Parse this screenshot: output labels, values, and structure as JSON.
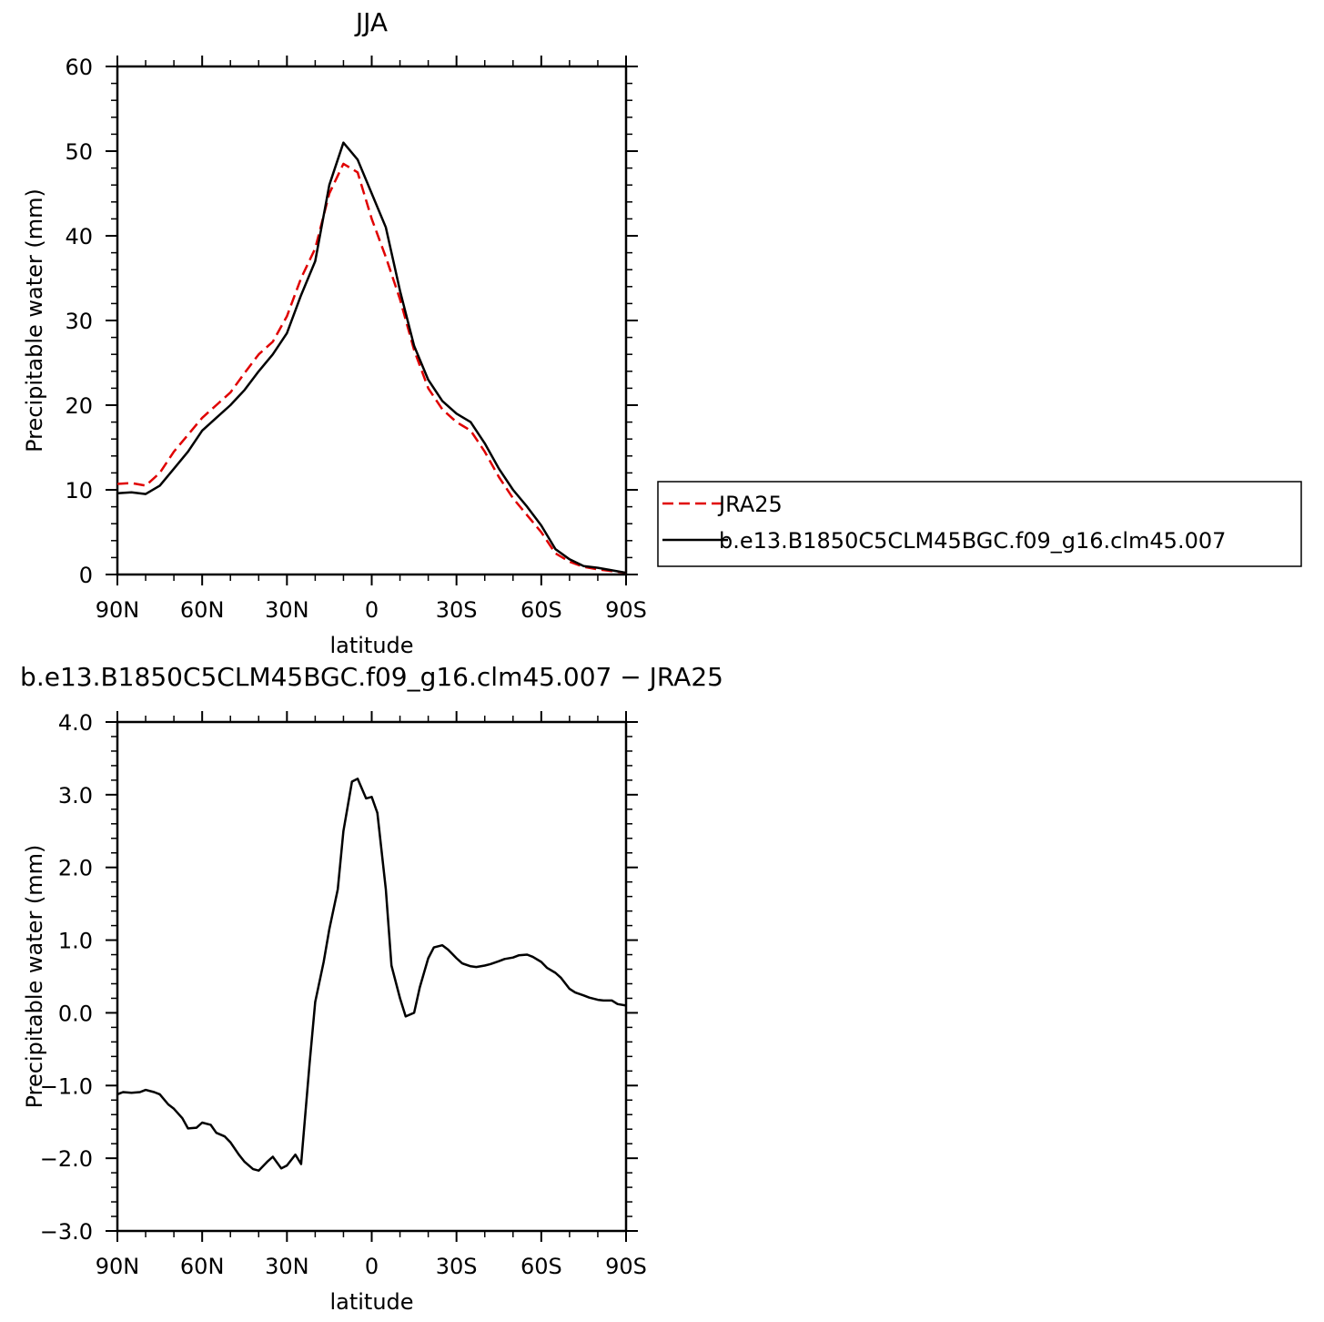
{
  "chart_data": [
    {
      "type": "line",
      "title": "JJA",
      "xlabel": "latitude",
      "ylabel": "Precipitable water (mm)",
      "xlim": [
        90,
        -90
      ],
      "ylim": [
        0,
        60
      ],
      "xticks": [
        {
          "value": 90,
          "label": "90N"
        },
        {
          "value": 60,
          "label": "60N"
        },
        {
          "value": 30,
          "label": "30N"
        },
        {
          "value": 0,
          "label": "0"
        },
        {
          "value": -30,
          "label": "30S"
        },
        {
          "value": -60,
          "label": "60S"
        },
        {
          "value": -90,
          "label": "90S"
        }
      ],
      "yticks": [
        {
          "value": 0,
          "label": "0"
        },
        {
          "value": 10,
          "label": "10"
        },
        {
          "value": 20,
          "label": "20"
        },
        {
          "value": 30,
          "label": "30"
        },
        {
          "value": 40,
          "label": "40"
        },
        {
          "value": 50,
          "label": "50"
        },
        {
          "value": 60,
          "label": "60"
        }
      ],
      "legend_position": "right",
      "series": [
        {
          "name": "JRA25",
          "color": "#e00000",
          "style": "dashed",
          "x": [
            90,
            85,
            80,
            75,
            70,
            65,
            60,
            55,
            50,
            45,
            40,
            35,
            30,
            25,
            20,
            15,
            10,
            5,
            0,
            -5,
            -10,
            -15,
            -20,
            -25,
            -30,
            -35,
            -40,
            -45,
            -50,
            -55,
            -60,
            -65,
            -70,
            -75,
            -80,
            -85,
            -90
          ],
          "y": [
            10.7,
            10.8,
            10.5,
            12.0,
            14.5,
            16.5,
            18.5,
            20.0,
            21.5,
            23.8,
            26.0,
            27.5,
            30.5,
            35.0,
            38.5,
            45.0,
            48.5,
            47.5,
            42.0,
            37.5,
            32.5,
            26.5,
            22.0,
            19.5,
            18.0,
            17.0,
            14.5,
            11.5,
            9.0,
            7.0,
            5.0,
            2.5,
            1.5,
            0.9,
            0.6,
            0.4,
            0.2
          ]
        },
        {
          "name": "b.e13.B1850C5CLM45BGC.f09_g16.clm45.007",
          "color": "#000000",
          "style": "solid",
          "x": [
            90,
            85,
            80,
            75,
            70,
            65,
            60,
            55,
            50,
            45,
            40,
            35,
            30,
            25,
            20,
            15,
            10,
            5,
            0,
            -5,
            -10,
            -15,
            -20,
            -25,
            -30,
            -35,
            -40,
            -45,
            -50,
            -55,
            -60,
            -65,
            -70,
            -75,
            -80,
            -85,
            -90
          ],
          "y": [
            9.6,
            9.7,
            9.5,
            10.5,
            12.5,
            14.5,
            17.0,
            18.5,
            20.0,
            21.8,
            24.0,
            26.0,
            28.5,
            33.0,
            37.0,
            46.0,
            51.0,
            49.0,
            45.0,
            41.0,
            33.5,
            27.0,
            23.0,
            20.5,
            19.0,
            18.0,
            15.5,
            12.5,
            10.0,
            8.0,
            5.8,
            3.0,
            1.8,
            1.0,
            0.8,
            0.5,
            0.2
          ]
        }
      ]
    },
    {
      "type": "line",
      "title": "b.e13.B1850C5CLM45BGC.f09_g16.clm45.007 - JRA25",
      "xlabel": "latitude",
      "ylabel": "Precipitable water (mm)",
      "xlim": [
        90,
        -90
      ],
      "ylim": [
        -3.0,
        4.0
      ],
      "xticks": [
        {
          "value": 90,
          "label": "90N"
        },
        {
          "value": 60,
          "label": "60N"
        },
        {
          "value": 30,
          "label": "30N"
        },
        {
          "value": 0,
          "label": "0"
        },
        {
          "value": -30,
          "label": "30S"
        },
        {
          "value": -60,
          "label": "60S"
        },
        {
          "value": -90,
          "label": "90S"
        }
      ],
      "yticks": [
        {
          "value": -3.0,
          "label": "-3.0"
        },
        {
          "value": -2.0,
          "label": "-2.0"
        },
        {
          "value": -1.0,
          "label": "-1.0"
        },
        {
          "value": 0.0,
          "label": "0.0"
        },
        {
          "value": 1.0,
          "label": "1.0"
        },
        {
          "value": 2.0,
          "label": "2.0"
        },
        {
          "value": 3.0,
          "label": "3.0"
        },
        {
          "value": 4.0,
          "label": "4.0"
        }
      ],
      "series": [
        {
          "color": "#000000",
          "style": "solid",
          "x": [
            90,
            88,
            85,
            82,
            80,
            77,
            75,
            72,
            70,
            67,
            65,
            62,
            60,
            57,
            55,
            52,
            50,
            47,
            45,
            42,
            40,
            37,
            35,
            32,
            30,
            27,
            25,
            22,
            20,
            17,
            15,
            12,
            10,
            7,
            5,
            2,
            0,
            -2,
            -5,
            -7,
            -10,
            -12,
            -15,
            -17,
            -20,
            -22,
            -25,
            -27,
            -30,
            -32,
            -35,
            -37,
            -40,
            -42,
            -45,
            -47,
            -50,
            -52,
            -55,
            -57,
            -60,
            -62,
            -65,
            -67,
            -70,
            -72,
            -75,
            -77,
            -80,
            -82,
            -85,
            -87,
            -90
          ],
          "y": [
            -1.12,
            -1.09,
            -1.1,
            -1.09,
            -1.06,
            -1.09,
            -1.12,
            -1.26,
            -1.32,
            -1.45,
            -1.59,
            -1.58,
            -1.51,
            -1.54,
            -1.65,
            -1.7,
            -1.78,
            -1.95,
            -2.05,
            -2.15,
            -2.17,
            -2.05,
            -1.98,
            -2.14,
            -2.1,
            -1.95,
            -2.08,
            -0.7,
            0.15,
            0.7,
            1.15,
            1.7,
            2.5,
            3.18,
            3.22,
            2.95,
            2.97,
            2.75,
            1.7,
            0.65,
            0.2,
            -0.05,
            0.0,
            0.35,
            0.75,
            0.9,
            0.93,
            0.87,
            0.75,
            0.68,
            0.64,
            0.63,
            0.65,
            0.67,
            0.71,
            0.74,
            0.76,
            0.79,
            0.8,
            0.77,
            0.7,
            0.62,
            0.55,
            0.48,
            0.33,
            0.28,
            0.24,
            0.21,
            0.18,
            0.17,
            0.17,
            0.12,
            0.1
          ]
        }
      ]
    }
  ]
}
